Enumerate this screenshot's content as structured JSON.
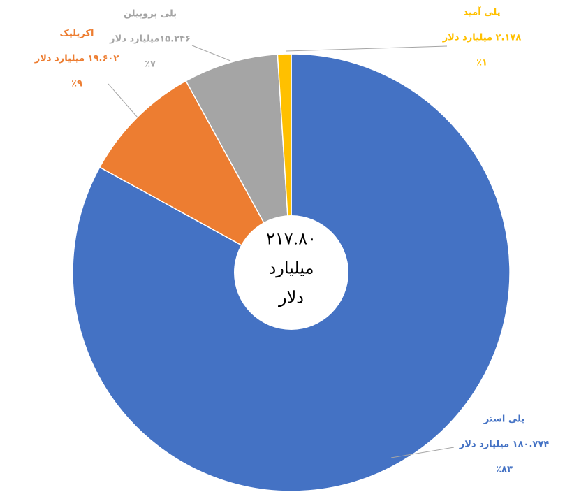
{
  "chart_data": {
    "type": "pie",
    "categories": [
      "پلی استر",
      "اکریلیک",
      "پلی پروپیلن",
      "پلی آمید"
    ],
    "values": [
      180.774,
      19.602,
      15.246,
      2.178
    ],
    "value_labels": [
      "۱۸۰.۷۷۴ میلیارد دلار",
      "۱۹.۶۰۲ میلیارد دلار",
      "۱۵.۲۴۶میلیارد دلار",
      "۲.۱۷۸ میلیارد دلار"
    ],
    "percentages": [
      83,
      9,
      7,
      1
    ],
    "percentage_labels": [
      "٪۸۳",
      "٪۹",
      "٪۷",
      "٪۱"
    ],
    "colors": [
      "#4472c4",
      "#ed7d31",
      "#a5a5a5",
      "#ffc000"
    ],
    "center_label": [
      "۲۱۷.۸۰",
      "میلیارد",
      "دلار"
    ]
  }
}
